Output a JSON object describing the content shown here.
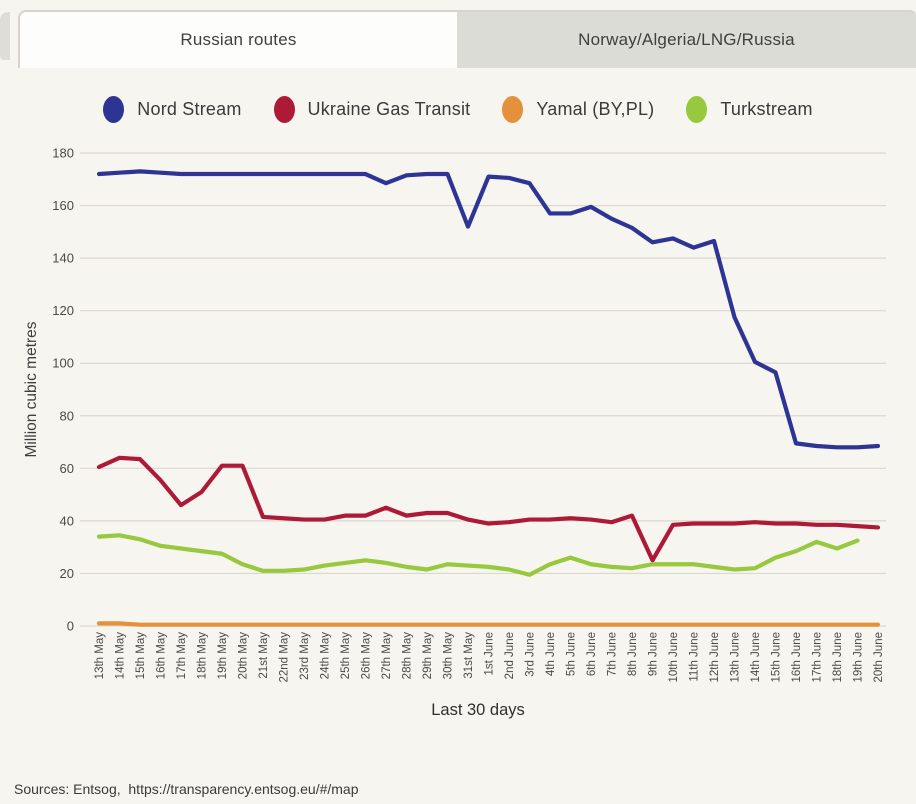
{
  "tabs": [
    {
      "label": "Russian routes",
      "active": true
    },
    {
      "label": "Norway/Algeria/LNG/Russia",
      "active": false
    }
  ],
  "footer": {
    "text": "Sources: Entsog,  https://transparency.entsog.eu/#/map"
  },
  "colors": {
    "background": "#f7f5ef",
    "gridline": "#dbd8d0",
    "tick_text": "#4a4a4a",
    "active_tab": "#fdfdfb",
    "inactive_tab": "#dcdcd6"
  },
  "chart_data": {
    "type": "line",
    "title": "",
    "xlabel": "Last 30 days",
    "ylabel": "Million cubic metres",
    "ylim": [
      0,
      180
    ],
    "ytick_step": 20,
    "grid": "horizontal-only",
    "legend_position": "top-center",
    "categories": [
      "13th May",
      "14th May",
      "15th May",
      "16th May",
      "17th May",
      "18th May",
      "19th May",
      "20th May",
      "21st May",
      "22nd May",
      "23rd May",
      "24th May",
      "25th May",
      "26th May",
      "27th May",
      "28th May",
      "29th May",
      "30th May",
      "31st May",
      "1st June",
      "2nd June",
      "3rd June",
      "4th June",
      "5th June",
      "6th June",
      "7th June",
      "8th June",
      "9th June",
      "10th June",
      "11th June",
      "12th June",
      "13th June",
      "14th June",
      "15th June",
      "16th June",
      "17th June",
      "18th June",
      "19th June",
      "20th June"
    ],
    "series": [
      {
        "name": "Nord Stream",
        "color": "#2e3493",
        "values": [
          172,
          172.5,
          173,
          172.5,
          172,
          172,
          172,
          172,
          172,
          172,
          172,
          172,
          172,
          172,
          168.5,
          171.5,
          172,
          172,
          152,
          171,
          170.5,
          168.5,
          157,
          157,
          159.5,
          155,
          151.5,
          146,
          147.5,
          144,
          146.5,
          117.5,
          100.5,
          96.5,
          69.5,
          68.5,
          68,
          68,
          68.5
        ]
      },
      {
        "name": "Ukraine Gas Transit",
        "color": "#ad1a38",
        "values": [
          60.5,
          64,
          63.5,
          55.5,
          46,
          51,
          61,
          61,
          41.5,
          41,
          40.5,
          40.5,
          42,
          42,
          45,
          42,
          43,
          43,
          40.5,
          39,
          39.5,
          40.5,
          40.5,
          41,
          40.5,
          39.5,
          42,
          25,
          38.5,
          39,
          39,
          39,
          39.5,
          39,
          39,
          38.5,
          38.5,
          38,
          37.5
        ]
      },
      {
        "name": "Yamal (BY,PL)",
        "color": "#e3913b",
        "values": [
          1,
          1,
          0.5,
          0.5,
          0.5,
          0.5,
          0.5,
          0.5,
          0.5,
          0.5,
          0.5,
          0.5,
          0.5,
          0.5,
          0.5,
          0.5,
          0.5,
          0.5,
          0.5,
          0.5,
          0.5,
          0.5,
          0.5,
          0.5,
          0.5,
          0.5,
          0.5,
          0.5,
          0.5,
          0.5,
          0.5,
          0.5,
          0.5,
          0.5,
          0.5,
          0.5,
          0.5,
          0.5,
          0.5
        ]
      },
      {
        "name": "Turkstream",
        "color": "#97c83e",
        "values": [
          34,
          34.5,
          33,
          30.5,
          29.5,
          28.5,
          27.5,
          23.5,
          21,
          21,
          21.5,
          23,
          24,
          25,
          24,
          22.5,
          21.5,
          23.5,
          23,
          22.5,
          21.5,
          19.5,
          23.5,
          26,
          23.5,
          22.5,
          22,
          23.5,
          23.5,
          23.5,
          22.5,
          21.5,
          22,
          26,
          28.5,
          32,
          29.5,
          32.5,
          null
        ]
      }
    ]
  }
}
